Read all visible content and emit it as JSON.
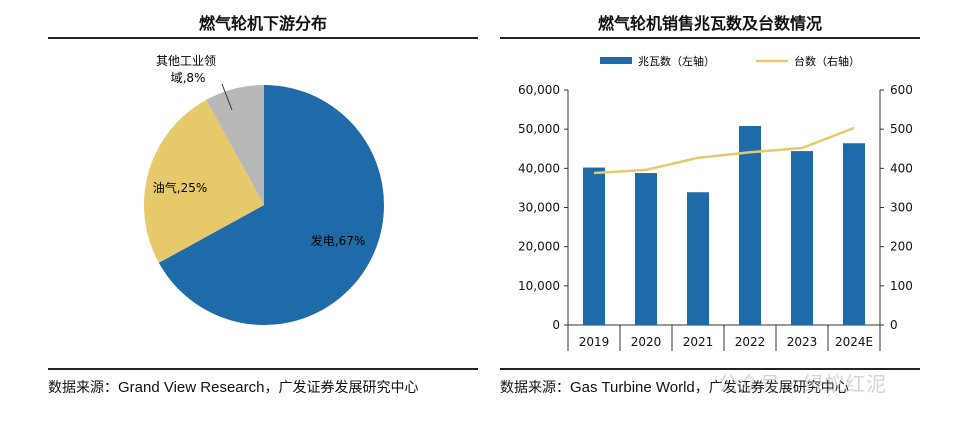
{
  "left": {
    "title": "燃气轮机下游分布",
    "source_prefix": "数据来源：",
    "source_en": "Grand View Research",
    "source_suffix": "，广发证券发展研究中心"
  },
  "right": {
    "title": "燃气轮机销售兆瓦数及台数情况",
    "source_prefix": "数据来源：",
    "source_en": "Gas Turbine World",
    "source_suffix": "，广发证券发展研究中心"
  },
  "watermark": "公众号 · 绿蚁红泥",
  "colors": {
    "blue": "#1f6aa8",
    "yellow": "#e6c96a",
    "gray": "#b8b8b8"
  },
  "chart_data": [
    {
      "type": "pie",
      "title": "燃气轮机下游分布",
      "slices": [
        {
          "label": "发电",
          "value": 67,
          "display": "发电,67%",
          "color": "#1f6aa8"
        },
        {
          "label": "油气",
          "value": 25,
          "display": "油气,25%",
          "color": "#e6c96a"
        },
        {
          "label": "其他工业领域",
          "value": 8,
          "display_line1": "其他工业领",
          "display_line2": "域,8%",
          "color": "#b8b8b8"
        }
      ]
    },
    {
      "type": "bar",
      "title": "燃气轮机销售兆瓦数及台数情况",
      "categories": [
        "2019",
        "2020",
        "2021",
        "2022",
        "2023",
        "2024E"
      ],
      "series": [
        {
          "name": "兆瓦数（左轴）",
          "type": "bar",
          "axis": "left",
          "color": "#1f6aa8",
          "values": [
            40200,
            38800,
            33900,
            50800,
            44400,
            46400
          ]
        },
        {
          "name": "台数（右轴）",
          "type": "line",
          "axis": "right",
          "color": "#e6c96a",
          "values": [
            388,
            396,
            427,
            441,
            452,
            503
          ]
        }
      ],
      "y_left": {
        "ylim": [
          0,
          60000
        ],
        "ticks": [
          "0",
          "10,000",
          "20,000",
          "30,000",
          "40,000",
          "50,000",
          "60,000"
        ]
      },
      "y_right": {
        "ylim": [
          0,
          600
        ],
        "ticks": [
          "0",
          "100",
          "200",
          "300",
          "400",
          "500",
          "600"
        ]
      },
      "legend_position": "top"
    }
  ]
}
